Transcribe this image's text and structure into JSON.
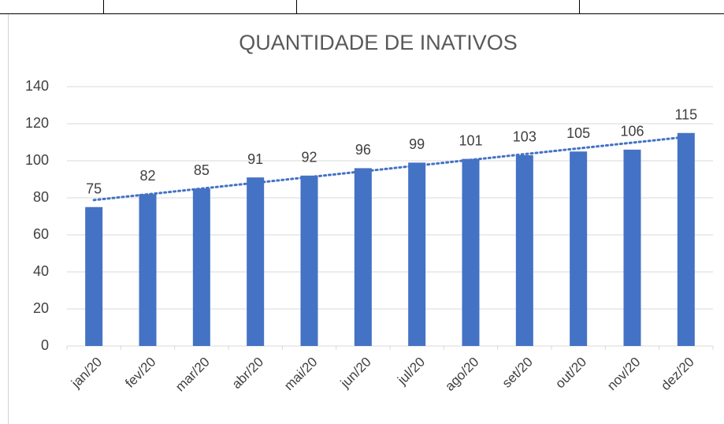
{
  "chart_data": {
    "type": "bar",
    "title": "QUANTIDADE  DE INATIVOS",
    "categories": [
      "jan/20",
      "fev/20",
      "mar/20",
      "abr/20",
      "mai/20",
      "jun/20",
      "jul/20",
      "ago/20",
      "set/20",
      "out/20",
      "nov/20",
      "dez/20"
    ],
    "values": [
      75,
      82,
      85,
      91,
      92,
      96,
      99,
      101,
      103,
      105,
      106,
      115
    ],
    "color": "#4472c4",
    "ylim": [
      0,
      140
    ],
    "yticks": [
      0,
      20,
      40,
      60,
      80,
      100,
      120,
      140
    ],
    "grid": true,
    "trendline": "linear",
    "trendline_color": "#4472c4"
  }
}
